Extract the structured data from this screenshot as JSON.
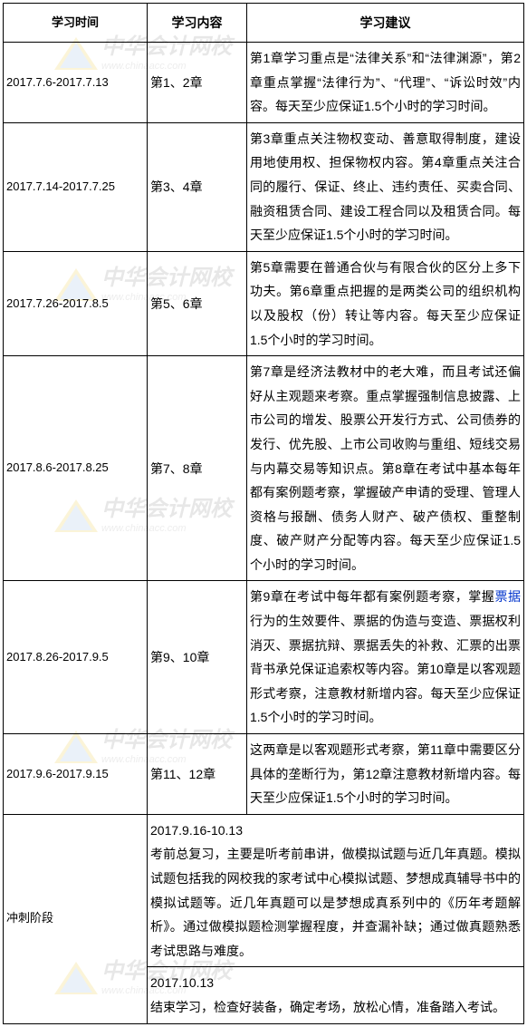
{
  "watermark": {
    "cn": "中华会计网校",
    "en": "www.chinaacc.com"
  },
  "headers": {
    "time": "学习时间",
    "content": "学习内容",
    "suggest": "学习建议"
  },
  "rows": [
    {
      "time": "2017.7.6-2017.7.13",
      "content": "第1、2章",
      "suggest_pre": "第1章学习重点是“法律关系”和“法律渊源”，第2章重点掌握“法律行为”、“代理”、“诉讼时效”内容。每天至少应保证1.5个小时的学习时间。",
      "link": "",
      "suggest_post": ""
    },
    {
      "time": "2017.7.14-2017.7.25",
      "content": "第3、4章",
      "suggest_pre": "第3章重点关注物权变动、善意取得制度，建设用地使用权、担保物权内容。第4章重点关注合同的履行、保证、终止、违约责任、买卖合同、融资租赁合同、建设工程合同以及租赁合同。每天至少应保证1.5个小时的学习时间。",
      "link": "",
      "suggest_post": ""
    },
    {
      "time": "2017.7.26-2017.8.5",
      "content": "第5、6章",
      "suggest_pre": "第5章需要在普通合伙与有限合伙的区分上多下功夫。第6章重点把握的是两类公司的组织机构以及股权（份）转让等内容。每天至少应保证1.5个小时的学习时间。",
      "link": "",
      "suggest_post": ""
    },
    {
      "time": "2017.8.6-2017.8.25",
      "content": "第7、8章",
      "suggest_pre": "第7章是经济法教材中的老大难，而且考试还偏好从主观题来考察。重点掌握强制信息披露、上市公司的增发、股票公开发行方式、公司债券的发行、优先股、上市公司收购与重组、短线交易与内幕交易等知识点。第8章在考试中基本每年都有案例题考察，掌握破产申请的受理、管理人资格与报酬、债务人财产、破产债权、重整制度、破产财产分配等内容。每天至少应保证1.5个小时的学习时间。",
      "link": "",
      "suggest_post": ""
    },
    {
      "time": "2017.8.26-2017.9.5",
      "content": "第9、10章",
      "suggest_pre": "第9章在考试中每年都有案例题考察，掌握",
      "link": "票据",
      "suggest_post": "行为的生效要件、票据的伪造与变造、票据权利消灭、票据抗辩、票据丢失的补救、汇票的出票背书承兑保证追索权等内容。第10章是以客观题形式考察，注意教材新增内容。每天至少应保证1.5个小时的学习时间。"
    },
    {
      "time": "2017.9.6-2017.9.15",
      "content": "第11、12章",
      "suggest_pre": "这两章是以客观题形式考察，第11章中需要区分具体的垄断行为，第12章注意教材新增内容。每天至少应保证1.5个小时的学习时间。",
      "link": "",
      "suggest_post": ""
    }
  ],
  "final": {
    "time": "冲刺阶段",
    "block1_date": "2017.9.16-10.13",
    "block1_text": "考前总复习，主要是听考前串讲，做模拟试题与近几年真题。模拟试题包括我的网校我的家考试中心模拟试题、梦想成真辅导书中的模拟试题等。近几年真题可以是梦想成真系列中的《历年考题解析》。通过做模拟题检测掌握程度，并查漏补缺；通过做真题熟悉考试思路与难度。",
    "block2_date": "2017.10.13",
    "block2_text": "结束学习，检查好装备，确定考场，放松心情，准备踏入考试。"
  }
}
